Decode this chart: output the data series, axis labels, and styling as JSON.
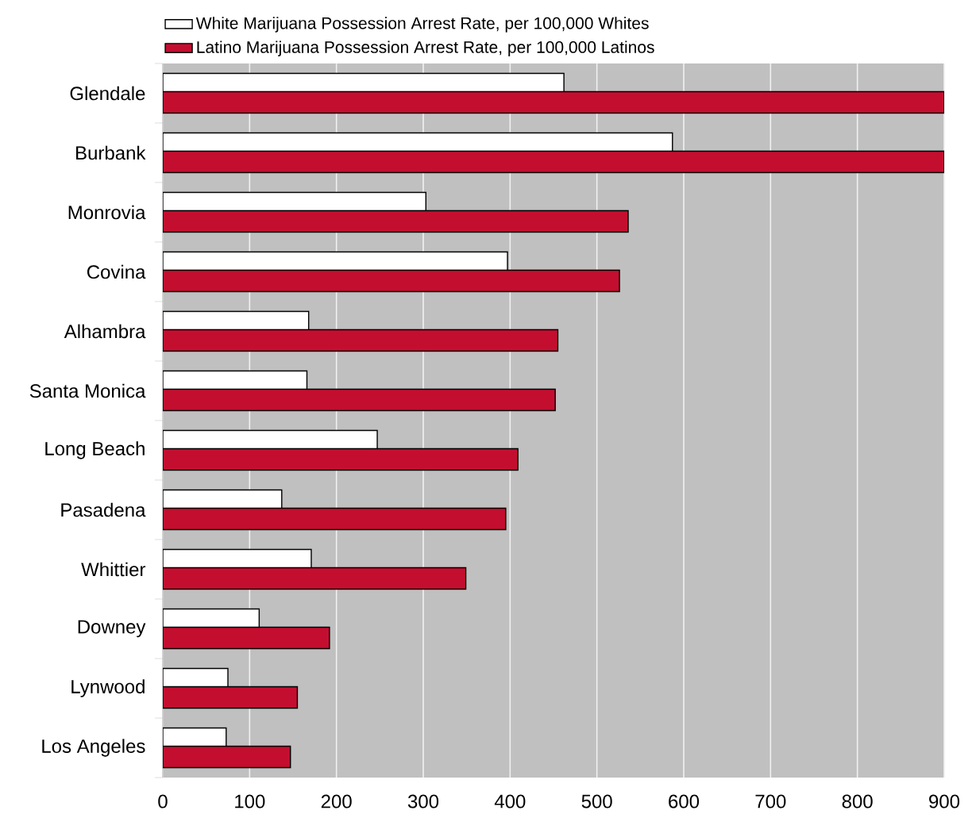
{
  "chart_data": {
    "type": "bar",
    "orientation": "horizontal",
    "categories": [
      "Glendale",
      "Burbank",
      "Monrovia",
      "Covina",
      "Alhambra",
      "Santa Monica",
      "Long Beach",
      "Pasadena",
      "Whittier",
      "Downey",
      "Lynwood",
      "Los Angeles"
    ],
    "series": [
      {
        "name": "White Marijuana Possession Arrest Rate, per 100,000 Whites",
        "color": "#ffffff",
        "values": [
          462,
          587,
          303,
          397,
          168,
          166,
          247,
          137,
          171,
          111,
          75,
          73
        ]
      },
      {
        "name": "Latino Marijuana Possession Arrest Rate, per 100,000 Latinos",
        "color": "#c40e30",
        "values": [
          900,
          900,
          536,
          526,
          455,
          452,
          409,
          395,
          349,
          192,
          155,
          147
        ]
      }
    ],
    "xlim": [
      0,
      900
    ],
    "xticks": [
      0,
      100,
      200,
      300,
      400,
      500,
      600,
      700,
      800,
      900
    ],
    "grid": "x",
    "legend": "top"
  }
}
